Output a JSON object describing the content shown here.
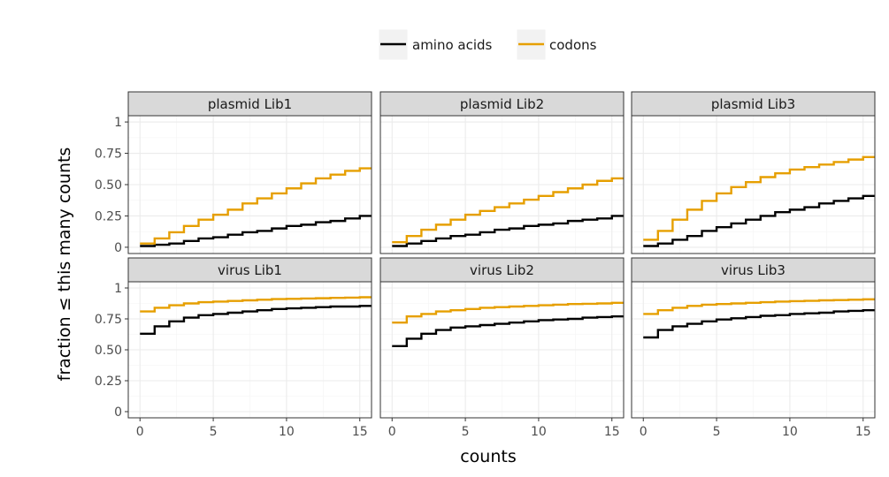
{
  "chart_data": {
    "type": "line",
    "step": true,
    "xlabel": "counts",
    "ylabel": "fraction ≤ this many counts",
    "xlim": [
      -0.8,
      15.8
    ],
    "ylim": [
      -0.05,
      1.05
    ],
    "x_ticks": [
      0,
      5,
      10,
      15
    ],
    "x_tick_labels": [
      "0",
      "5",
      "10",
      "15"
    ],
    "y_ticks": [
      0,
      0.25,
      0.5,
      0.75,
      1
    ],
    "y_tick_labels": [
      "0",
      "0.25",
      "0.50",
      "0.75",
      "1"
    ],
    "grid": true,
    "legend_position": "top",
    "series_styles": [
      {
        "name": "amino acids",
        "color": "#000000"
      },
      {
        "name": "codons",
        "color": "#e69f00"
      }
    ],
    "x": [
      0,
      1,
      2,
      3,
      4,
      5,
      6,
      7,
      8,
      9,
      10,
      11,
      12,
      13,
      14,
      15,
      16
    ],
    "panels": [
      {
        "title": "plasmid Lib1",
        "series": [
          {
            "name": "amino acids",
            "values": [
              0.01,
              0.02,
              0.03,
              0.05,
              0.07,
              0.08,
              0.1,
              0.12,
              0.13,
              0.15,
              0.17,
              0.18,
              0.2,
              0.21,
              0.23,
              0.25,
              0.27
            ]
          },
          {
            "name": "codons",
            "values": [
              0.03,
              0.07,
              0.12,
              0.17,
              0.22,
              0.26,
              0.3,
              0.35,
              0.39,
              0.43,
              0.47,
              0.51,
              0.55,
              0.58,
              0.61,
              0.63,
              0.65
            ]
          }
        ]
      },
      {
        "title": "plasmid Lib2",
        "series": [
          {
            "name": "amino acids",
            "values": [
              0.01,
              0.03,
              0.05,
              0.07,
              0.09,
              0.1,
              0.12,
              0.14,
              0.15,
              0.17,
              0.18,
              0.19,
              0.21,
              0.22,
              0.23,
              0.25,
              0.26
            ]
          },
          {
            "name": "codons",
            "values": [
              0.04,
              0.09,
              0.14,
              0.18,
              0.22,
              0.26,
              0.29,
              0.32,
              0.35,
              0.38,
              0.41,
              0.44,
              0.47,
              0.5,
              0.53,
              0.55,
              0.57
            ]
          }
        ]
      },
      {
        "title": "plasmid Lib3",
        "series": [
          {
            "name": "amino acids",
            "values": [
              0.01,
              0.03,
              0.06,
              0.09,
              0.13,
              0.16,
              0.19,
              0.22,
              0.25,
              0.28,
              0.3,
              0.32,
              0.35,
              0.37,
              0.39,
              0.41,
              0.43
            ]
          },
          {
            "name": "codons",
            "values": [
              0.06,
              0.13,
              0.22,
              0.3,
              0.37,
              0.43,
              0.48,
              0.52,
              0.56,
              0.59,
              0.62,
              0.64,
              0.66,
              0.68,
              0.7,
              0.72,
              0.73
            ]
          }
        ]
      },
      {
        "title": "virus Lib1",
        "series": [
          {
            "name": "amino acids",
            "values": [
              0.63,
              0.69,
              0.73,
              0.76,
              0.78,
              0.79,
              0.8,
              0.81,
              0.82,
              0.83,
              0.835,
              0.84,
              0.845,
              0.85,
              0.85,
              0.855,
              0.86
            ]
          },
          {
            "name": "codons",
            "values": [
              0.81,
              0.84,
              0.86,
              0.875,
              0.885,
              0.89,
              0.895,
              0.9,
              0.905,
              0.91,
              0.912,
              0.915,
              0.917,
              0.92,
              0.922,
              0.925,
              0.93
            ]
          }
        ]
      },
      {
        "title": "virus Lib2",
        "series": [
          {
            "name": "amino acids",
            "values": [
              0.53,
              0.59,
              0.63,
              0.66,
              0.68,
              0.69,
              0.7,
              0.71,
              0.72,
              0.73,
              0.74,
              0.745,
              0.75,
              0.76,
              0.765,
              0.77,
              0.78
            ]
          },
          {
            "name": "codons",
            "values": [
              0.72,
              0.77,
              0.79,
              0.81,
              0.82,
              0.83,
              0.84,
              0.845,
              0.85,
              0.855,
              0.86,
              0.865,
              0.87,
              0.872,
              0.875,
              0.88,
              0.885
            ]
          }
        ]
      },
      {
        "title": "virus Lib3",
        "series": [
          {
            "name": "amino acids",
            "values": [
              0.6,
              0.66,
              0.69,
              0.71,
              0.73,
              0.745,
              0.755,
              0.765,
              0.775,
              0.78,
              0.79,
              0.795,
              0.8,
              0.81,
              0.815,
              0.82,
              0.825
            ]
          },
          {
            "name": "codons",
            "values": [
              0.79,
              0.82,
              0.84,
              0.855,
              0.865,
              0.87,
              0.875,
              0.88,
              0.885,
              0.89,
              0.893,
              0.896,
              0.9,
              0.902,
              0.905,
              0.908,
              0.91
            ]
          }
        ]
      }
    ]
  }
}
